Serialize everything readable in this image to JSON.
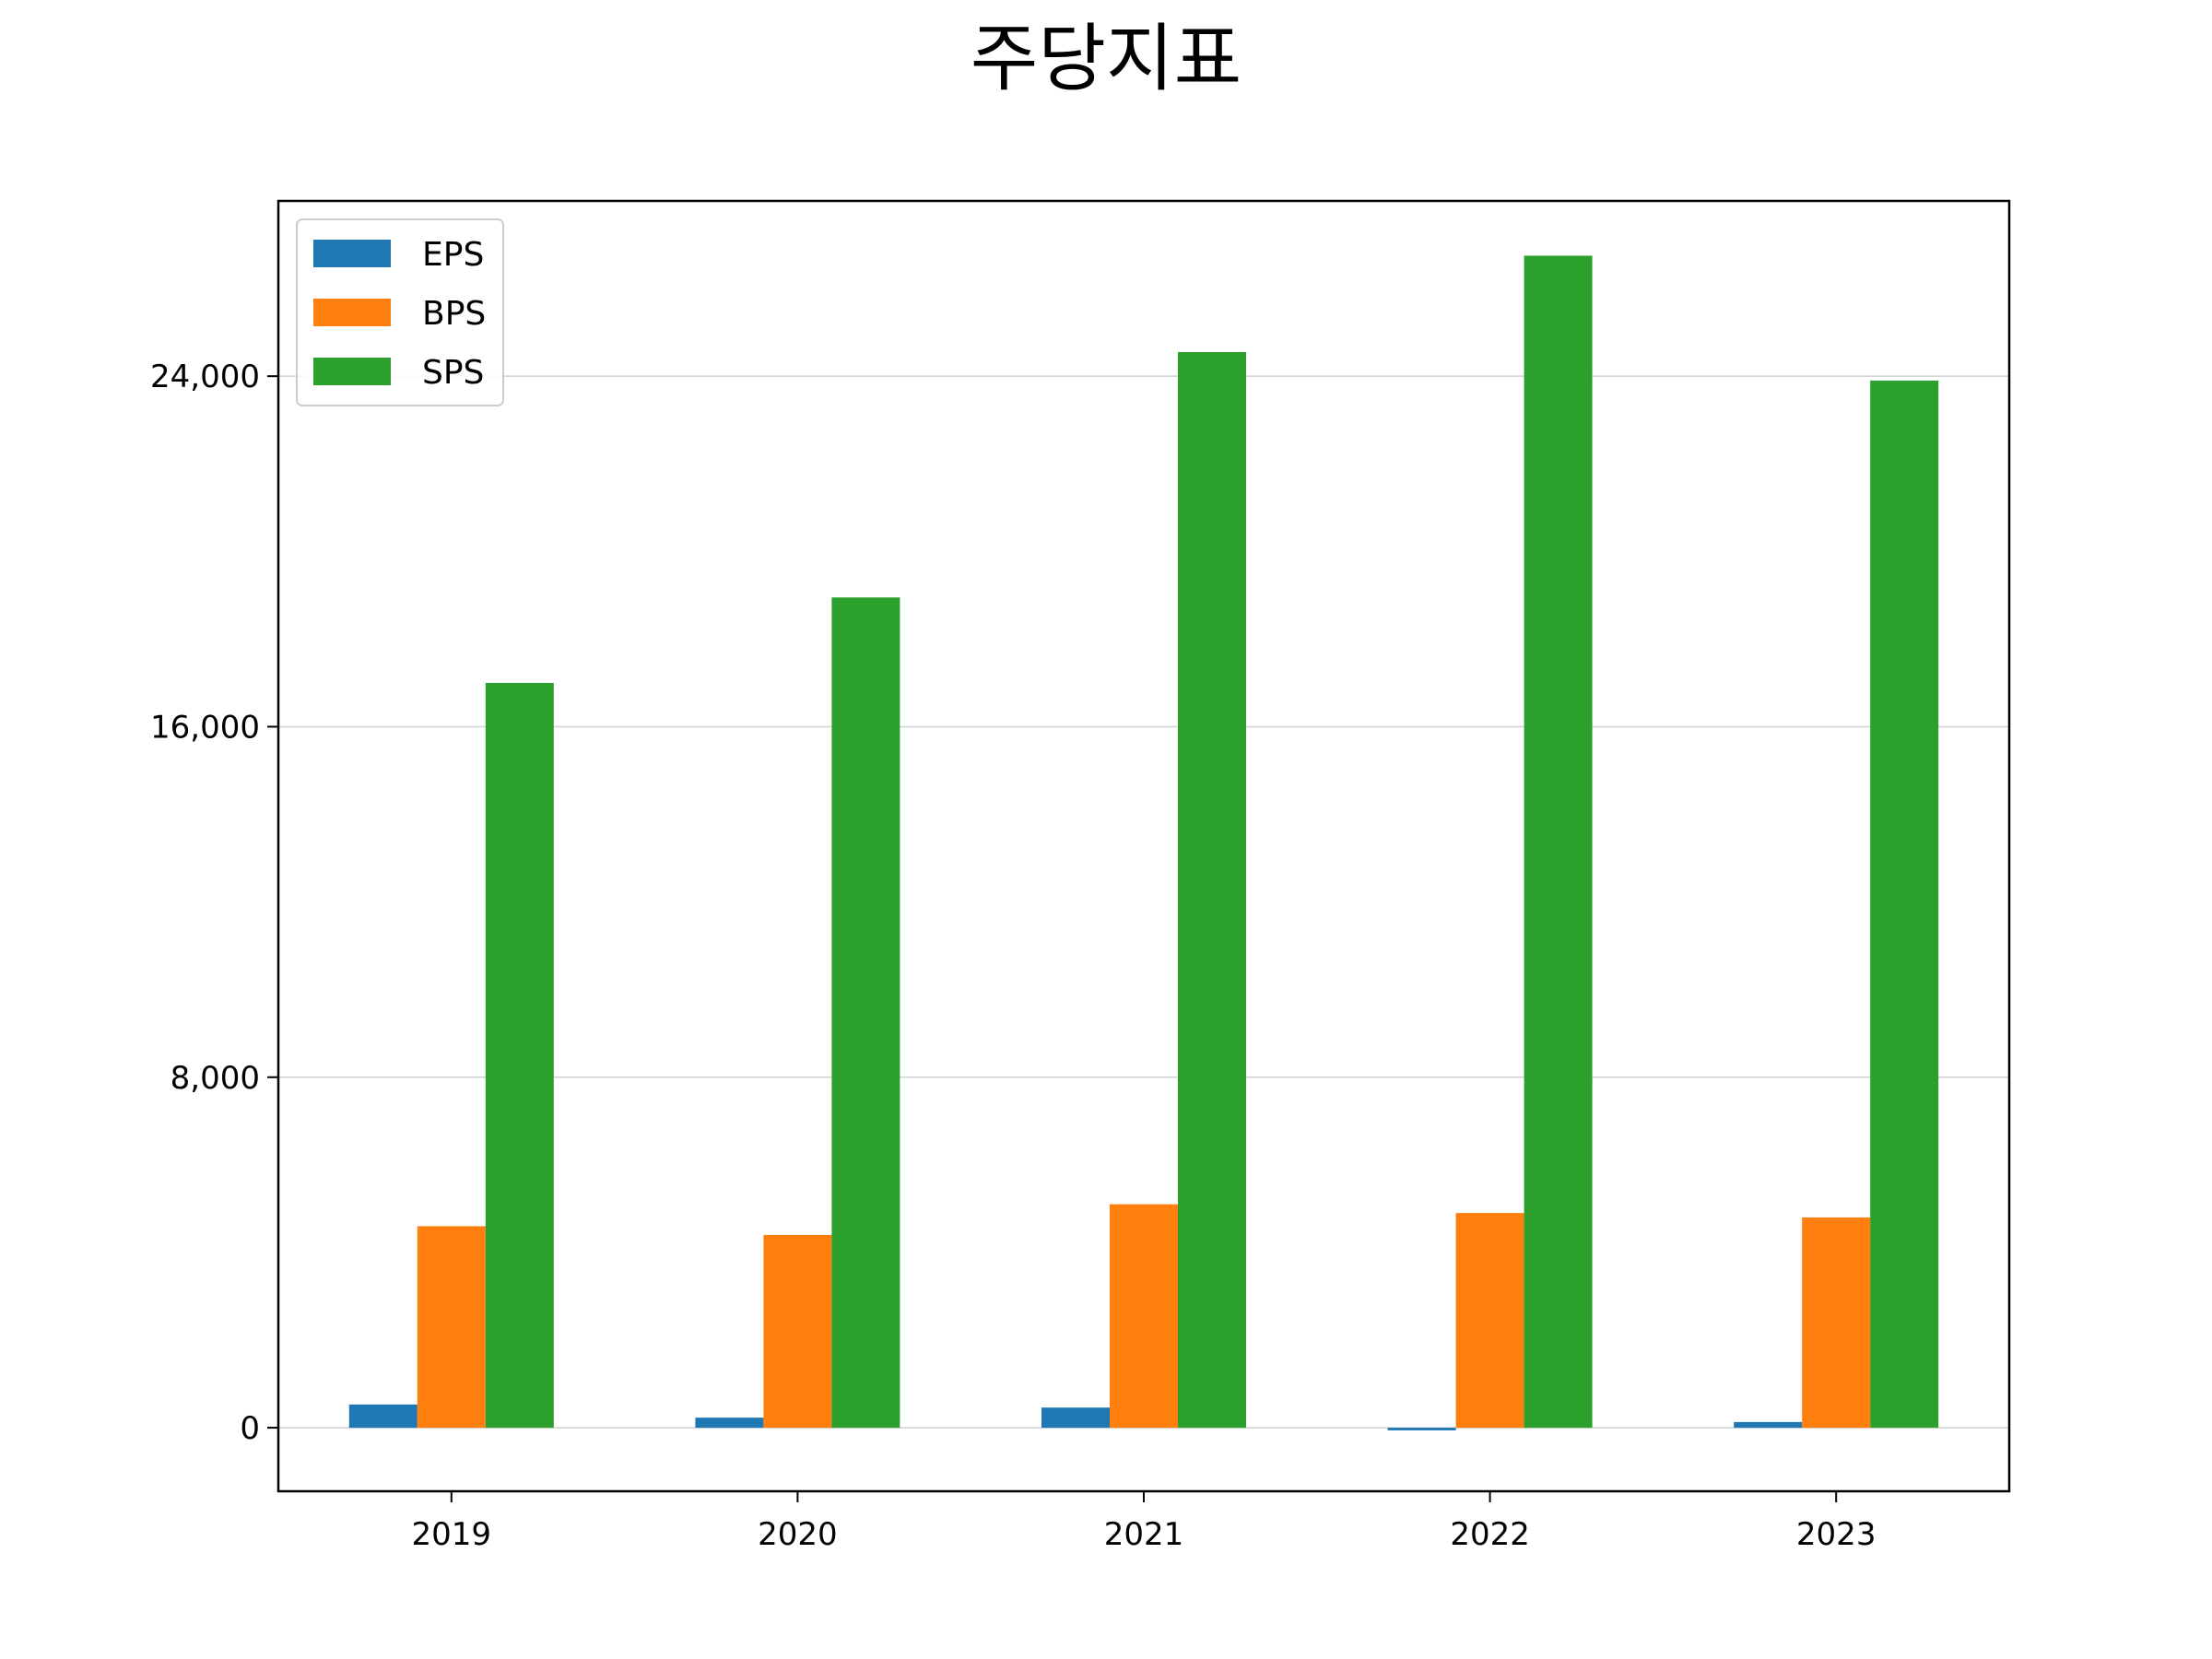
{
  "chart_data": {
    "type": "bar",
    "title": "주당지표",
    "xlabel": "",
    "ylabel": "",
    "categories": [
      "2019",
      "2020",
      "2021",
      "2022",
      "2023"
    ],
    "series": [
      {
        "name": "EPS",
        "color": "#1f77b4",
        "values": [
          530,
          230,
          460,
          -60,
          130
        ]
      },
      {
        "name": "BPS",
        "color": "#ff7f0e",
        "values": [
          4600,
          4400,
          5100,
          4900,
          4800
        ]
      },
      {
        "name": "SPS",
        "color": "#2ca02c",
        "values": [
          17000,
          18950,
          24550,
          26750,
          23900
        ]
      }
    ],
    "ylim": [
      -1450,
      28000
    ],
    "yticks": [
      0,
      8000,
      16000,
      24000
    ],
    "ytick_labels": [
      "0",
      "8,000",
      "16,000",
      "24,000"
    ],
    "grid": "y",
    "legend_position": "upper-left"
  }
}
